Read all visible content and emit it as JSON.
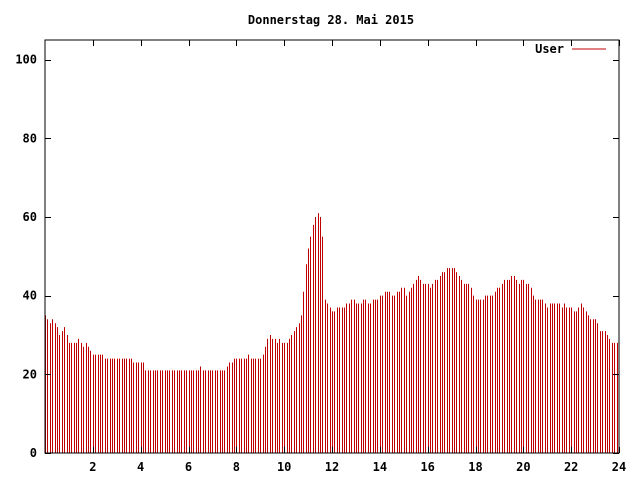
{
  "chart_data": {
    "type": "bar",
    "title": "Donnerstag 28. Mai 2015",
    "xlabel": "",
    "ylabel": "",
    "xlim": [
      0,
      24
    ],
    "ylim": [
      0,
      105
    ],
    "x_ticks": [
      "2",
      "4",
      "6",
      "8",
      "10",
      "12",
      "14",
      "16",
      "18",
      "20",
      "22",
      "24"
    ],
    "y_ticks": [
      "0",
      "20",
      "40",
      "60",
      "80",
      "100"
    ],
    "grid": false,
    "legend_position": "top-right",
    "series": [
      {
        "name": "User",
        "color": "#c00000",
        "interval_hours": 0.1,
        "values": [
          35,
          34,
          33,
          34,
          33,
          32,
          30,
          31,
          32,
          30,
          28,
          28,
          28,
          28,
          29,
          28,
          27,
          28,
          27,
          26,
          25,
          25,
          25,
          25,
          25,
          24,
          24,
          24,
          24,
          24,
          24,
          24,
          24,
          24,
          24,
          24,
          24,
          23,
          23,
          23,
          23,
          23,
          21,
          21,
          21,
          21,
          21,
          21,
          21,
          21,
          21,
          21,
          21,
          21,
          21,
          21,
          21,
          21,
          21,
          21,
          21,
          21,
          21,
          21,
          21,
          22,
          21,
          21,
          21,
          21,
          21,
          21,
          21,
          21,
          21,
          21,
          22,
          23,
          23,
          24,
          24,
          24,
          24,
          24,
          24,
          25,
          24,
          24,
          24,
          24,
          24,
          25,
          27,
          29,
          30,
          29,
          29,
          28,
          29,
          28,
          28,
          28,
          29,
          30,
          31,
          32,
          33,
          35,
          41,
          48,
          52,
          55,
          58,
          60,
          61,
          60,
          55,
          39,
          38,
          37,
          36,
          36,
          37,
          37,
          37,
          37,
          38,
          38,
          39,
          39,
          38,
          38,
          38,
          39,
          39,
          38,
          38,
          39,
          39,
          39,
          40,
          40,
          41,
          41,
          41,
          40,
          40,
          41,
          41,
          42,
          42,
          40,
          41,
          42,
          43,
          44,
          45,
          44,
          43,
          43,
          43,
          42,
          43,
          44,
          44,
          45,
          46,
          46,
          47,
          47,
          47,
          47,
          46,
          45,
          44,
          43,
          43,
          43,
          42,
          40,
          39,
          39,
          39,
          39,
          40,
          40,
          40,
          40,
          41,
          42,
          42,
          43,
          44,
          44,
          44,
          45,
          45,
          44,
          43,
          44,
          44,
          43,
          43,
          42,
          40,
          39,
          39,
          39,
          39,
          38,
          37,
          38,
          38,
          38,
          38,
          38,
          37,
          38,
          37,
          37,
          37,
          36,
          36,
          37,
          38,
          37,
          36,
          35,
          34,
          34,
          34,
          33,
          31,
          31,
          31,
          30,
          29,
          28,
          28,
          28
        ]
      }
    ]
  }
}
